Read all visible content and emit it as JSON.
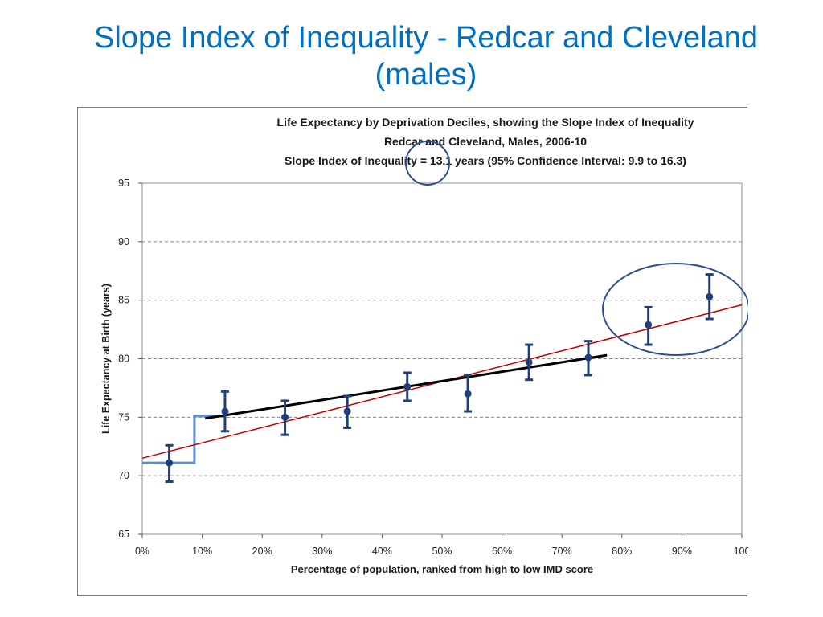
{
  "slide": {
    "title_line1": "Slope Index of Inequality - Redcar and Cleveland",
    "title_line2": "(males)"
  },
  "chart_data": {
    "type": "scatter",
    "title_lines": [
      "Life Expectancy by Deprivation Deciles, showing the Slope Index of Inequality",
      "Redcar and Cleveland, Males, 2006-10",
      "Slope Index of Inequality = 13.1 years (95% Confidence Interval: 9.9 to 16.3)"
    ],
    "xlabel": "Percentage of population, ranked from high to low IMD score",
    "ylabel": "Life Expectancy at Birth (years)",
    "xlim": [
      0,
      100
    ],
    "ylim": [
      65,
      95
    ],
    "x_ticks": [
      "0%",
      "10%",
      "20%",
      "30%",
      "40%",
      "50%",
      "60%",
      "70%",
      "80%",
      "90%",
      "100"
    ],
    "y_ticks": [
      "65",
      "70",
      "75",
      "80",
      "85",
      "90",
      "95"
    ],
    "grid": "horizontal-dashed",
    "points": [
      {
        "x": 4.5,
        "y": 71.1,
        "low": 69.5,
        "high": 72.6
      },
      {
        "x": 13.8,
        "y": 75.5,
        "low": 73.8,
        "high": 77.2
      },
      {
        "x": 23.8,
        "y": 75.0,
        "low": 73.5,
        "high": 76.4
      },
      {
        "x": 34.2,
        "y": 75.5,
        "low": 74.1,
        "high": 76.8
      },
      {
        "x": 44.2,
        "y": 77.6,
        "low": 76.4,
        "high": 78.8
      },
      {
        "x": 54.3,
        "y": 77.0,
        "low": 75.5,
        "high": 78.6
      },
      {
        "x": 64.5,
        "y": 79.7,
        "low": 78.2,
        "high": 81.2
      },
      {
        "x": 74.4,
        "y": 80.1,
        "low": 78.6,
        "high": 81.5
      },
      {
        "x": 84.4,
        "y": 82.9,
        "low": 81.2,
        "high": 84.4
      },
      {
        "x": 94.6,
        "y": 85.3,
        "low": 83.4,
        "high": 87.2
      }
    ],
    "sii_line": {
      "x": [
        0,
        100
      ],
      "y": [
        71.5,
        84.6
      ],
      "color": "#C00000"
    },
    "trend_line": {
      "x": [
        10.5,
        77.5
      ],
      "y": [
        74.9,
        80.3
      ],
      "color": "#000000"
    },
    "step_line": {
      "x": [
        0,
        8.7,
        8.7,
        13.8
      ],
      "y": [
        71.1,
        71.1,
        75.1,
        75.1
      ],
      "color": "#5B8FCF"
    },
    "highlights": [
      {
        "shape": "circle",
        "around": "sii_value"
      },
      {
        "shape": "ellipse",
        "around_points": [
          84.4,
          94.6
        ]
      }
    ],
    "colors": {
      "points": "#1F3F7A",
      "title_text": "#0070C0",
      "highlight": "#2E4F8E"
    }
  }
}
